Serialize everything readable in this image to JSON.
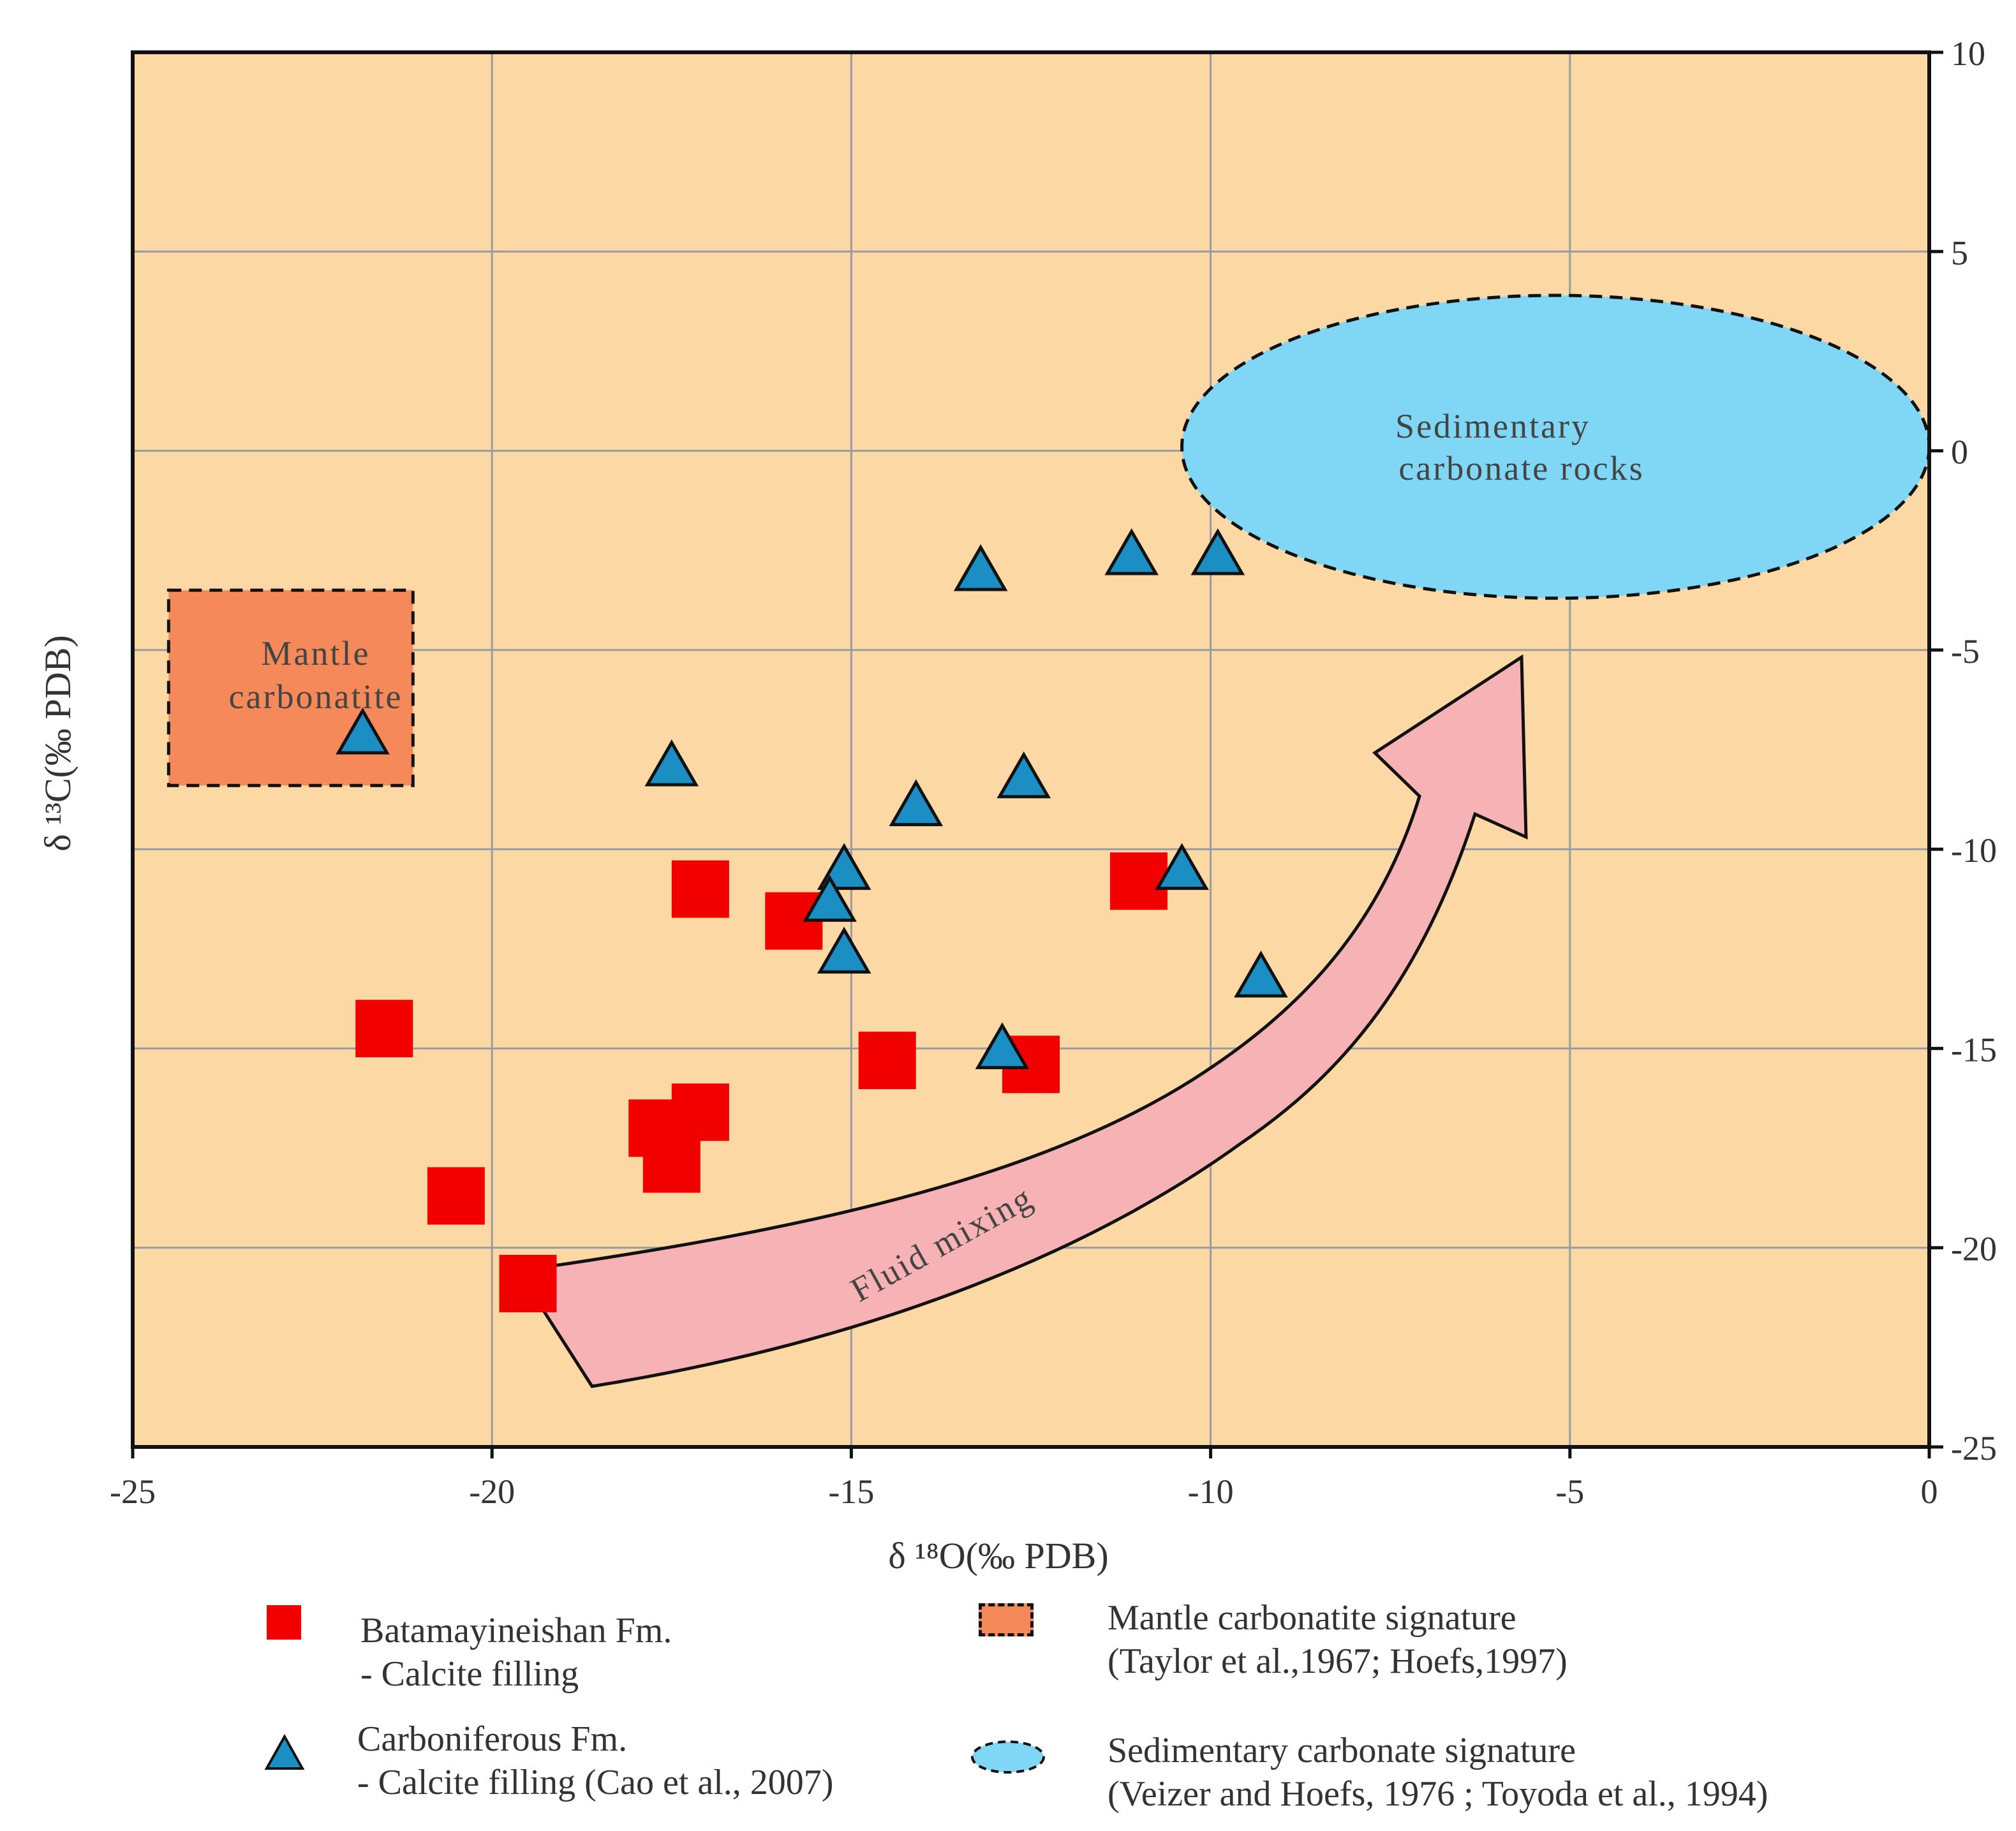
{
  "chart_data": {
    "type": "scatter",
    "xlabel": "δ ¹⁸O(‰ PDB)",
    "ylabel": "δ ¹³C(‰ PDB)",
    "xlim": [
      -25,
      0
    ],
    "ylim": [
      -25,
      10
    ],
    "x_ticks": [
      -25,
      -20,
      -15,
      -10,
      -5,
      0
    ],
    "y_ticks": [
      10,
      5,
      0,
      -5,
      -10,
      -15,
      -20,
      -25
    ],
    "x_tick_labels": [
      "-25",
      "-20",
      "-15",
      "-10",
      "-5",
      "0"
    ],
    "y_tick_labels": [
      "10",
      "5",
      "0",
      "-5",
      "-10",
      "-15",
      "-20",
      "-25"
    ],
    "grid": true,
    "y_axis_side": "right",
    "colors": {
      "plot_background": "#fcd8a4",
      "square": "#f20000",
      "triangle": "#1b8fc3",
      "mantle_box": "#f6895a",
      "sediment_ellipse": "#7fd6f5",
      "arrow": "#f7b2b5",
      "grid": "#9a9aa2"
    },
    "series": [
      {
        "name": "Batamayineishan Fm. - Calcite filling",
        "marker": "square",
        "points": [
          {
            "x": -17.1,
            "y": -11.0
          },
          {
            "x": -15.8,
            "y": -11.8
          },
          {
            "x": -11.0,
            "y": -10.8
          },
          {
            "x": -21.5,
            "y": -14.5
          },
          {
            "x": -14.5,
            "y": -15.3
          },
          {
            "x": -12.5,
            "y": -15.4
          },
          {
            "x": -17.7,
            "y": -17.0
          },
          {
            "x": -17.1,
            "y": -16.6
          },
          {
            "x": -17.5,
            "y": -17.9
          },
          {
            "x": -20.5,
            "y": -18.7
          },
          {
            "x": -19.5,
            "y": -20.9
          }
        ]
      },
      {
        "name": "Carboniferous Fm. - Calcite filling (Cao et al., 2007)",
        "marker": "triangle",
        "points": [
          {
            "x": -13.2,
            "y": -3.0
          },
          {
            "x": -11.1,
            "y": -2.6
          },
          {
            "x": -9.9,
            "y": -2.6
          },
          {
            "x": -21.8,
            "y": -7.1
          },
          {
            "x": -17.5,
            "y": -7.9
          },
          {
            "x": -12.6,
            "y": -8.2
          },
          {
            "x": -14.1,
            "y": -8.9
          },
          {
            "x": -15.1,
            "y": -10.5
          },
          {
            "x": -10.4,
            "y": -10.5
          },
          {
            "x": -15.3,
            "y": -11.3
          },
          {
            "x": -15.1,
            "y": -12.6
          },
          {
            "x": -9.3,
            "y": -13.2
          },
          {
            "x": -12.9,
            "y": -15.0
          }
        ]
      }
    ],
    "regions": [
      {
        "name": "Mantle carbonatite",
        "shape": "rectangle",
        "x": [
          -24.5,
          -21.1
        ],
        "y": [
          -8.4,
          -3.5
        ]
      },
      {
        "name": "Sedimentary carbonate rocks",
        "shape": "ellipse",
        "center": [
          -5.2,
          0.1
        ],
        "radius_x": 5.2,
        "radius_y": 3.8
      }
    ],
    "annotations": {
      "mantle_label": [
        "Mantle",
        "carbonatite"
      ],
      "sediment_label": [
        "Sedimentary",
        "carbonate rocks"
      ],
      "arrow_label": "Fluid mixing"
    }
  },
  "legend": {
    "batamayineishan": [
      "Batamayineishan  Fm.",
      "- Calcite filling"
    ],
    "carboniferous": [
      "Carboniferous Fm.",
      "- Calcite filling (Cao et al., 2007)"
    ],
    "mantle_signature": [
      "Mantle carbonatite signature",
      "(Taylor et al.,1967;  Hoefs,1997)"
    ],
    "sedimentary_signature": [
      "Sedimentary  carbonate signature",
      "(Veizer and Hoefs, 1976 ; Toyoda  et al., 1994)"
    ]
  }
}
